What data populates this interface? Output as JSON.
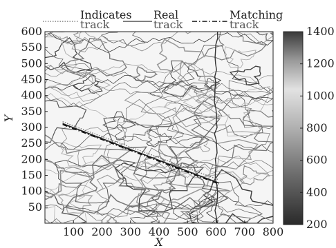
{
  "chart_data": {
    "type": "line",
    "title": "",
    "xlabel": "X",
    "ylabel": "Y",
    "xlim": [
      0,
      800
    ],
    "ylim": [
      0,
      600
    ],
    "x_ticks": [
      100,
      200,
      300,
      400,
      500,
      600,
      700,
      800
    ],
    "y_ticks": [
      50,
      100,
      150,
      200,
      250,
      300,
      350,
      400,
      450,
      500,
      550,
      600
    ],
    "grid": false,
    "legend_position": "top",
    "series": [
      {
        "name": "Indicates track",
        "style": "dotted",
        "x": [
          62,
          150,
          250,
          350,
          450,
          550,
          610
        ],
        "y": [
          318,
          288,
          255,
          222,
          189,
          156,
          136
        ]
      },
      {
        "name": "Real track",
        "style": "solid",
        "x": [
          62,
          150,
          250,
          350,
          450,
          550,
          610
        ],
        "y": [
          312,
          282,
          248,
          214,
          180,
          146,
          126
        ]
      },
      {
        "name": "Matching track",
        "style": "dash-dot",
        "x": [
          62,
          150,
          250,
          350,
          450,
          550,
          610
        ],
        "y": [
          309,
          279,
          245,
          211,
          177,
          143,
          123
        ]
      }
    ],
    "background": {
      "type": "contour",
      "description": "terrain contour map in grayscale"
    },
    "colorbar": {
      "ticks": [
        200,
        400,
        600,
        800,
        1000,
        1200,
        1400
      ],
      "range": [
        200,
        1400
      ]
    }
  }
}
